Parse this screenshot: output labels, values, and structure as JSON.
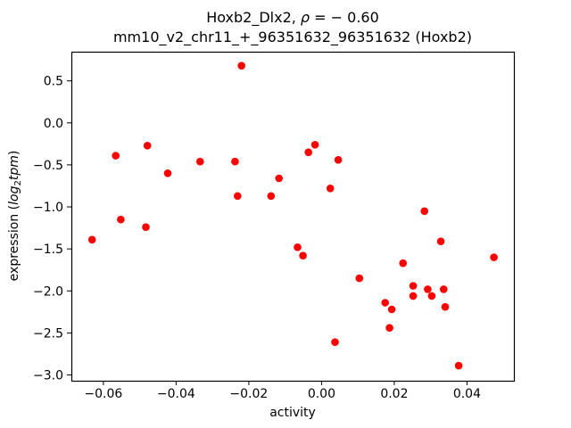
{
  "figure": {
    "title_line1": {
      "prefix": "Hoxb2_Dlx2, ",
      "rho": "ρ",
      "equals": " = ",
      "value": "− 0.60"
    },
    "title_line2": "mm10_v2_chr11_+_96351632_96351632 (Hoxb2)",
    "xlabel": "activity",
    "ylabel": {
      "prefix": "expression (",
      "log": "log",
      "sub": "2",
      "tpm": "tpm",
      "suffix": ")"
    }
  },
  "chart_data": {
    "type": "scatter",
    "title": "Hoxb2_Dlx2, ρ = − 0.60",
    "subtitle": "mm10_v2_chr11_+_96351632_96351632 (Hoxb2)",
    "xlabel": "activity",
    "ylabel": "expression (log2tpm)",
    "grid": false,
    "legend": false,
    "marker_color": "#ff0000",
    "marker_radius_px": 4.3,
    "axis_color": "#000000",
    "xlim": [
      -0.0688,
      0.0529
    ],
    "ylim": [
      -3.069,
      0.847
    ],
    "xticks": {
      "values": [
        -0.06,
        -0.04,
        -0.02,
        0.0,
        0.02,
        0.04
      ],
      "labels": [
        "−0.06",
        "−0.04",
        "−0.02",
        "0.00",
        "0.02",
        "0.04"
      ]
    },
    "yticks": {
      "values": [
        0.5,
        0.0,
        -0.5,
        -1.0,
        -1.5,
        -2.0,
        -2.5,
        -3.0
      ],
      "labels": [
        "0.5",
        "0.0",
        "−0.5",
        "−1.0",
        "−1.5",
        "−2.0",
        "−2.5",
        "−3.0"
      ]
    },
    "points": [
      [
        -0.022,
        0.68
      ],
      [
        -0.0479,
        -0.27
      ],
      [
        -0.0566,
        -0.39
      ],
      [
        -0.0334,
        -0.46
      ],
      [
        -0.0238,
        -0.46
      ],
      [
        -0.0423,
        -0.6
      ],
      [
        -0.0117,
        -0.66
      ],
      [
        -0.0231,
        -0.87
      ],
      [
        -0.0139,
        -0.87
      ],
      [
        -0.0018,
        -0.26
      ],
      [
        -0.0036,
        -0.35
      ],
      [
        0.0046,
        -0.44
      ],
      [
        0.0024,
        -0.78
      ],
      [
        0.0283,
        -1.05
      ],
      [
        -0.0552,
        -1.15
      ],
      [
        -0.0483,
        -1.24
      ],
      [
        -0.0631,
        -1.39
      ],
      [
        -0.0066,
        -1.48
      ],
      [
        -0.0051,
        -1.58
      ],
      [
        0.0328,
        -1.41
      ],
      [
        0.0474,
        -1.6
      ],
      [
        0.0224,
        -1.67
      ],
      [
        0.0104,
        -1.85
      ],
      [
        0.0252,
        -1.94
      ],
      [
        0.0252,
        -2.06
      ],
      [
        0.0292,
        -1.98
      ],
      [
        0.0303,
        -2.06
      ],
      [
        0.0336,
        -1.98
      ],
      [
        0.0175,
        -2.14
      ],
      [
        0.0193,
        -2.22
      ],
      [
        0.034,
        -2.19
      ],
      [
        0.0187,
        -2.44
      ],
      [
        0.0037,
        -2.61
      ],
      [
        0.0377,
        -2.89
      ]
    ]
  }
}
